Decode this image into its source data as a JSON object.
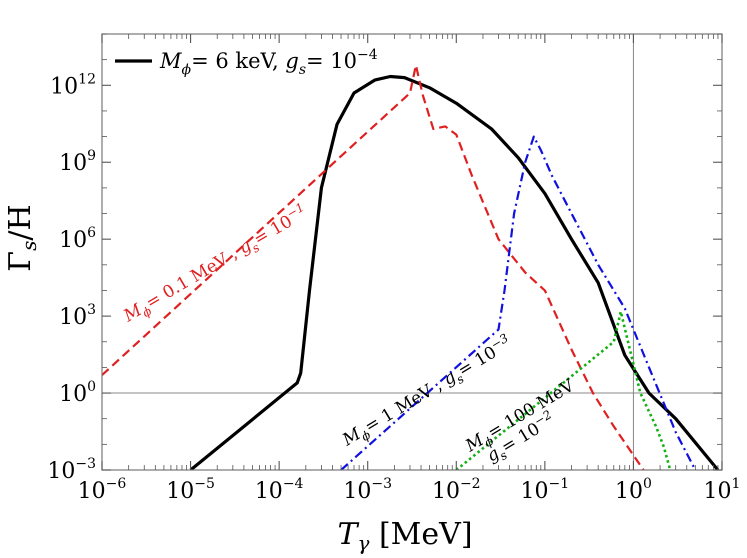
{
  "chart_data": {
    "type": "line",
    "title": "",
    "xlabel": {
      "main": "T",
      "sub": "γ",
      "unit": " [MeV]"
    },
    "ylabel": {
      "main": "Γ",
      "sub": "s",
      "unit": "/H"
    },
    "x_scale": "log",
    "y_scale": "log",
    "xlim": [
      1e-06,
      10
    ],
    "ylim": [
      0.001,
      100000000000000.0
    ],
    "x_ticks": [
      {
        "base": "10",
        "exp": "−6",
        "value": 1e-06
      },
      {
        "base": "10",
        "exp": "−5",
        "value": 1e-05
      },
      {
        "base": "10",
        "exp": "−4",
        "value": 0.0001
      },
      {
        "base": "10",
        "exp": "−3",
        "value": 0.001
      },
      {
        "base": "10",
        "exp": "−2",
        "value": 0.01
      },
      {
        "base": "10",
        "exp": "−1",
        "value": 0.1
      },
      {
        "base": "10",
        "exp": "0",
        "value": 1
      },
      {
        "base": "10",
        "exp": "1",
        "value": 10
      }
    ],
    "y_ticks": [
      {
        "base": "10",
        "exp": "−3",
        "value": 0.001
      },
      {
        "base": "10",
        "exp": "0",
        "value": 1
      },
      {
        "base": "10",
        "exp": "3",
        "value": 1000.0
      },
      {
        "base": "10",
        "exp": "6",
        "value": 1000000.0
      },
      {
        "base": "10",
        "exp": "9",
        "value": 1000000000.0
      },
      {
        "base": "10",
        "exp": "12",
        "value": 1000000000000.0
      }
    ],
    "reference_lines": {
      "horizontal_y": 1,
      "vertical_x": 1
    },
    "legend": {
      "placement": "top-left",
      "entry": {
        "p1": "M",
        "p1sub": "ϕ",
        "p2": "= 6 keV, ",
        "p3": "g",
        "p3sub": "s",
        "p4": "= 10",
        "p4sup": "−4"
      }
    },
    "series": [
      {
        "color": "#000000",
        "style": "solid",
        "x": [
          1e-05,
          0.00016,
          0.000175,
          0.00022,
          0.0003,
          0.00045,
          0.0007,
          0.0012,
          0.0018,
          0.0026,
          0.005,
          0.01,
          0.025,
          0.05,
          0.1,
          0.2,
          0.4,
          0.8,
          1.5,
          3,
          9
        ],
        "y": [
          0.001,
          2.5,
          6,
          10000.0,
          100000000.0,
          30000000000.0,
          500000000000.0,
          1600000000000.0,
          2200000000000.0,
          2000000000000.0,
          800000000000.0,
          200000000000.0,
          20000000000.0,
          1500000000.0,
          60000000.0,
          1000000.0,
          20000.0,
          30,
          1,
          0.1,
          0.001
        ]
      },
      {
        "color": "#e02020",
        "style": "dashed",
        "x": [
          1e-06,
          0.003,
          0.0035,
          0.0042,
          0.0055,
          0.0075,
          0.01,
          0.015,
          0.03,
          0.06,
          0.1,
          0.2,
          0.35,
          0.6,
          1.3
        ],
        "y": [
          5,
          500000000000.0,
          6000000000000.0,
          400000000000.0,
          20000000000.0,
          25000000000.0,
          12000000000.0,
          300000000.0,
          1000000.0,
          50000.0,
          10000.0,
          50,
          1,
          0.05,
          0.001
        ]
      },
      {
        "color": "#1010e0",
        "style": "dashdot",
        "x": [
          0.0005,
          0.03,
          0.035,
          0.045,
          0.06,
          0.075,
          0.09,
          0.12,
          0.2,
          0.4,
          0.8,
          1.5,
          3,
          5
        ],
        "y": [
          0.001,
          300,
          10000.0,
          10000000.0,
          1000000000.0,
          10000000000.0,
          3000000000.0,
          300000000.0,
          10000000.0,
          100000.0,
          2000,
          10,
          0.03,
          0.001
        ]
      },
      {
        "color": "#10b010",
        "style": "dotted",
        "x": [
          0.01,
          0.6,
          0.72,
          0.9,
          1.2,
          1.8,
          2.2,
          2.6
        ],
        "y": [
          0.001,
          100,
          1500,
          60,
          1,
          0.05,
          0.008,
          0.001
        ]
      }
    ],
    "annotations": [
      {
        "color": "#e02020",
        "parts": [
          {
            "t": "M",
            "f": "i"
          },
          {
            "t": "ϕ",
            "f": "sub"
          },
          {
            "t": "= 0.1 MeV , ",
            "f": "n"
          },
          {
            "t": "g",
            "f": "i"
          },
          {
            "t": "s",
            "f": "sub"
          },
          {
            "t": "= 10",
            "f": "n"
          },
          {
            "t": "−1",
            "f": "sup"
          }
        ]
      },
      {
        "color": "#000000",
        "parts": [
          {
            "t": "M",
            "f": "i"
          },
          {
            "t": "ϕ",
            "f": "sub"
          },
          {
            "t": "= 1 MeV , ",
            "f": "n"
          },
          {
            "t": "g",
            "f": "i"
          },
          {
            "t": "s",
            "f": "sub"
          },
          {
            "t": "= 10",
            "f": "n"
          },
          {
            "t": "−3",
            "f": "sup"
          }
        ]
      },
      {
        "color": "#000000",
        "parts": [
          {
            "t": "M",
            "f": "i"
          },
          {
            "t": "ϕ",
            "f": "sub"
          },
          {
            "t": "= 100 MeV",
            "f": "n"
          }
        ]
      },
      {
        "color": "#000000",
        "parts": [
          {
            "t": "g",
            "f": "i"
          },
          {
            "t": "s",
            "f": "sub"
          },
          {
            "t": "= 10",
            "f": "n"
          },
          {
            "t": "−2",
            "f": "sup"
          }
        ]
      }
    ]
  }
}
